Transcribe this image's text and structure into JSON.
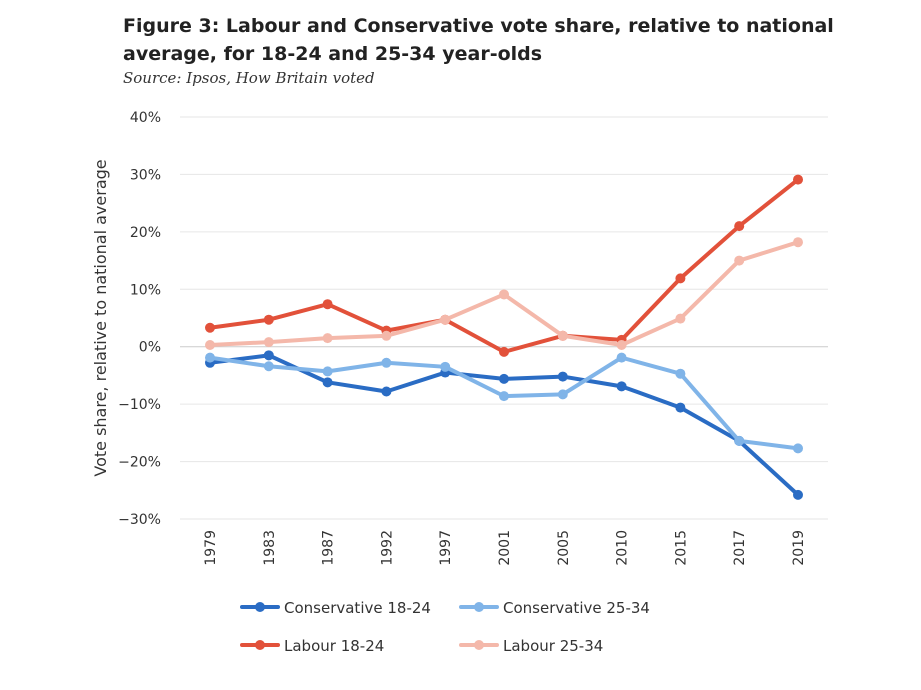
{
  "title": "Figure 3: Labour and Conservative vote share, relative to national average, for 18-24 and 25-34 year-olds",
  "source": "Source: Ipsos, How Britain voted",
  "colors": {
    "conservative_18_24": "#2a6cc4",
    "conservative_25_34": "#80b4e8",
    "labour_18_24": "#e2513a",
    "labour_25_34": "#f4b8aa",
    "gridline": "#e6e6e6",
    "zero_line": "#cccccc"
  },
  "chart_data": {
    "type": "line",
    "title": "Figure 3: Labour and Conservative vote share, relative to national average, for 18-24 and 25-34 year-olds",
    "xlabel": "",
    "ylabel": "Vote share, relative to national average",
    "categories": [
      "1979",
      "1983",
      "1987",
      "1992",
      "1997",
      "2001",
      "2005",
      "2010",
      "2015",
      "2017",
      "2019"
    ],
    "yticks": [
      "40%",
      "30%",
      "20%",
      "10%",
      "0%",
      "−10%",
      "−20%",
      "−30%"
    ],
    "ylim": [
      -30,
      40
    ],
    "grid": true,
    "legend_position": "bottom",
    "series": [
      {
        "name": "Conservative 18-24",
        "color_key": "conservative_18_24",
        "values": [
          -2.8,
          -1.5,
          -6.2,
          -7.8,
          -4.5,
          -5.6,
          -5.2,
          -6.9,
          -10.6,
          -16.4,
          -25.8
        ]
      },
      {
        "name": "Conservative 25-34",
        "color_key": "conservative_25_34",
        "values": [
          -1.9,
          -3.4,
          -4.3,
          -2.8,
          -3.5,
          -8.6,
          -8.3,
          -1.9,
          -4.7,
          -16.4,
          -17.7
        ]
      },
      {
        "name": "Labour 18-24",
        "color_key": "labour_18_24",
        "values": [
          3.3,
          4.7,
          7.4,
          2.8,
          4.7,
          -0.9,
          1.9,
          1.2,
          11.9,
          21.0,
          29.1
        ]
      },
      {
        "name": "Labour 25-34",
        "color_key": "labour_25_34",
        "values": [
          0.3,
          0.8,
          1.5,
          1.9,
          4.7,
          9.1,
          1.9,
          0.3,
          4.9,
          15.0,
          18.2
        ]
      }
    ]
  }
}
